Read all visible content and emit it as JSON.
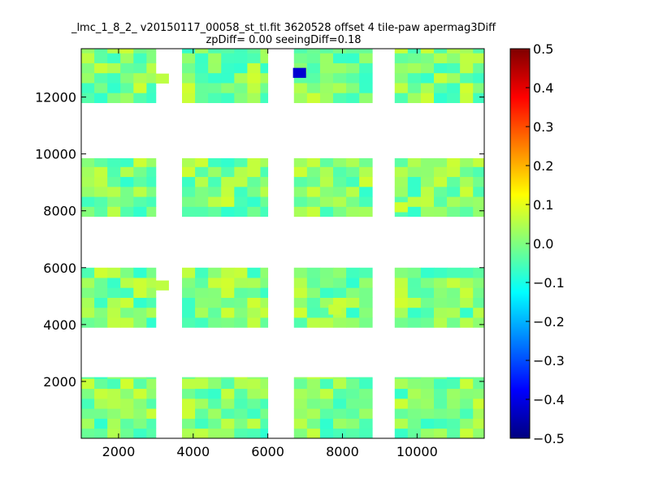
{
  "chart_data": {
    "type": "heatmap",
    "title": "_lmc_1_8_2_ v20150117_00058_st_tl.fit 3620528 offset 4 tile-paw apermag3Diff",
    "subtitle": "zpDiff= 0.00 seeingDiff=0.18",
    "xlim": [
      1000,
      11800
    ],
    "ylim": [
      0,
      13700
    ],
    "x_ticks": [
      2000,
      4000,
      6000,
      8000,
      10000
    ],
    "y_ticks": [
      2000,
      4000,
      6000,
      8000,
      10000,
      12000
    ],
    "grid": false,
    "colorscale": "jet",
    "color_range": [
      -0.5,
      0.5
    ],
    "colorbar_ticks": [
      "0.5",
      "0.4",
      "0.3",
      "0.2",
      "0.1",
      "0.0",
      "−0.1",
      "−0.2",
      "−0.3",
      "−0.4",
      "−0.5"
    ],
    "colorbar_tick_values": [
      0.5,
      0.4,
      0.3,
      0.2,
      0.1,
      0.0,
      -0.1,
      -0.2,
      -0.3,
      -0.4,
      -0.5
    ],
    "cell_size": 350,
    "column_blocks_x": [
      [
        1000,
        3000
      ],
      [
        3700,
        6000
      ],
      [
        6700,
        8800
      ],
      [
        9400,
        11800
      ]
    ],
    "row_blocks_y": [
      [
        0,
        2150
      ],
      [
        3900,
        6000
      ],
      [
        7800,
        9850
      ],
      [
        11800,
        13700
      ]
    ],
    "outlier_cells": [
      {
        "x": 6850,
        "y": 12850,
        "value": -0.42
      },
      {
        "x": 3175,
        "y": 12650,
        "value": 0.06
      },
      {
        "x": 3175,
        "y": 5375,
        "value": 0.06
      },
      {
        "x": 7800,
        "y": 4525,
        "value": 0.07
      },
      {
        "x": 9575,
        "y": 8125,
        "value": 0.08
      }
    ],
    "typical_value_range": [
      -0.08,
      0.08
    ]
  }
}
